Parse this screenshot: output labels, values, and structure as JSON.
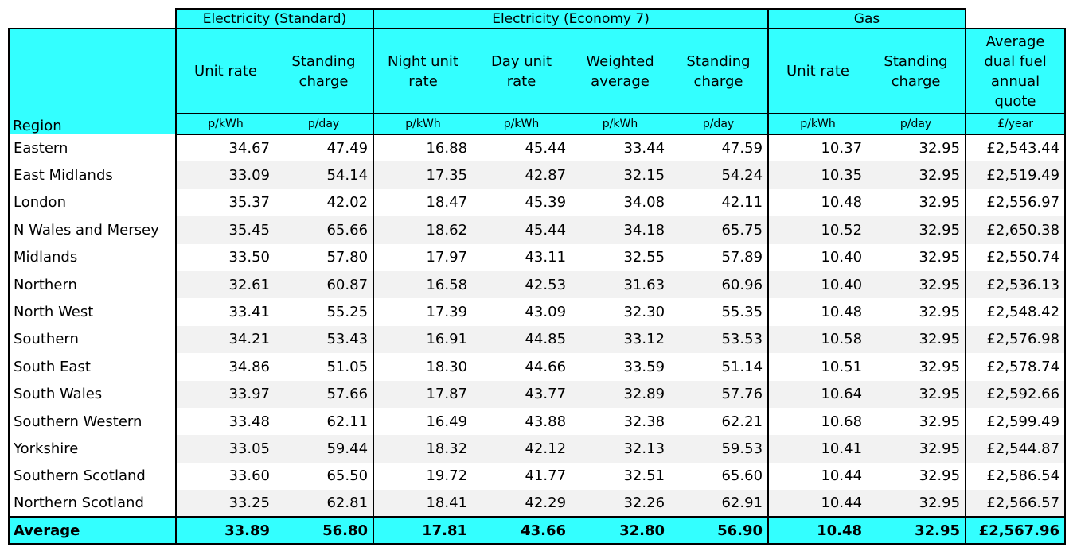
{
  "groups": {
    "standard": "Electricity (Standard)",
    "economy7": "Electricity (Economy 7)",
    "gas": "Gas"
  },
  "headers": {
    "region": "Region",
    "std_unit": "Unit rate",
    "std_standing": "Standing charge",
    "e7_night": "Night unit rate",
    "e7_day": "Day unit rate",
    "e7_weighted": "Weighted average",
    "e7_standing": "Standing charge",
    "gas_unit": "Unit rate",
    "gas_standing": "Standing charge",
    "avg_quote": "Average dual fuel annual quote"
  },
  "units": {
    "std_unit": "p/kWh",
    "std_standing": "p/day",
    "e7_night": "p/kWh",
    "e7_day": "p/kWh",
    "e7_weighted": "p/kWh",
    "e7_standing": "p/day",
    "gas_unit": "p/kWh",
    "gas_standing": "p/day",
    "avg_quote": "£/year"
  },
  "rows": [
    [
      "Eastern",
      "34.67",
      "47.49",
      "16.88",
      "45.44",
      "33.44",
      "47.59",
      "10.37",
      "32.95",
      "£2,543.44"
    ],
    [
      "East Midlands",
      "33.09",
      "54.14",
      "17.35",
      "42.87",
      "32.15",
      "54.24",
      "10.35",
      "32.95",
      "£2,519.49"
    ],
    [
      "London",
      "35.37",
      "42.02",
      "18.47",
      "45.39",
      "34.08",
      "42.11",
      "10.48",
      "32.95",
      "£2,556.97"
    ],
    [
      "N Wales and Mersey",
      "35.45",
      "65.66",
      "18.62",
      "45.44",
      "34.18",
      "65.75",
      "10.52",
      "32.95",
      "£2,650.38"
    ],
    [
      "Midlands",
      "33.50",
      "57.80",
      "17.97",
      "43.11",
      "32.55",
      "57.89",
      "10.40",
      "32.95",
      "£2,550.74"
    ],
    [
      "Northern",
      "32.61",
      "60.87",
      "16.58",
      "42.53",
      "31.63",
      "60.96",
      "10.40",
      "32.95",
      "£2,536.13"
    ],
    [
      "North West",
      "33.41",
      "55.25",
      "17.39",
      "43.09",
      "32.30",
      "55.35",
      "10.48",
      "32.95",
      "£2,548.42"
    ],
    [
      "Southern",
      "34.21",
      "53.43",
      "16.91",
      "44.85",
      "33.12",
      "53.53",
      "10.58",
      "32.95",
      "£2,576.98"
    ],
    [
      "South East",
      "34.86",
      "51.05",
      "18.30",
      "44.66",
      "33.59",
      "51.14",
      "10.51",
      "32.95",
      "£2,578.74"
    ],
    [
      "South Wales",
      "33.97",
      "57.66",
      "17.87",
      "43.77",
      "32.89",
      "57.76",
      "10.64",
      "32.95",
      "£2,592.66"
    ],
    [
      "Southern Western",
      "33.48",
      "62.11",
      "16.49",
      "43.88",
      "32.38",
      "62.21",
      "10.68",
      "32.95",
      "£2,599.49"
    ],
    [
      "Yorkshire",
      "33.05",
      "59.44",
      "18.32",
      "42.12",
      "32.13",
      "59.53",
      "10.41",
      "32.95",
      "£2,544.87"
    ],
    [
      "Southern Scotland",
      "33.60",
      "65.50",
      "19.72",
      "41.77",
      "32.51",
      "65.60",
      "10.44",
      "32.95",
      "£2,586.54"
    ],
    [
      "Northern Scotland",
      "33.25",
      "62.81",
      "18.41",
      "42.29",
      "32.26",
      "62.91",
      "10.44",
      "32.95",
      "£2,566.57"
    ]
  ],
  "average": [
    "Average",
    "33.89",
    "56.80",
    "17.81",
    "43.66",
    "32.80",
    "56.90",
    "10.48",
    "32.95",
    "£2,567.96"
  ],
  "colors": {
    "header_fill": "#33ffff",
    "stripe": "#f2f2f2",
    "border": "#000000"
  }
}
